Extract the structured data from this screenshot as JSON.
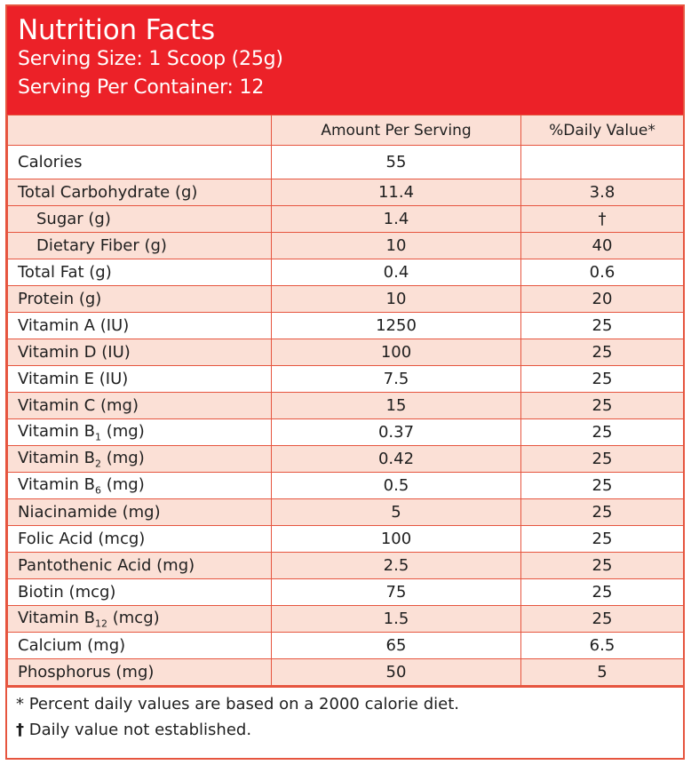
{
  "header": {
    "title": "Nutrition Facts",
    "serving_size": "Serving Size: 1 Scoop (25g)",
    "servings_per_container": "Serving Per Container: 12"
  },
  "columns": {
    "nutrient": "",
    "amount": "Amount Per Serving",
    "daily_value": "%Daily Value*"
  },
  "rows": [
    {
      "name": "Calories",
      "amount": "55",
      "dv": ""
    },
    {
      "name": "Total Carbohydrate (g)",
      "amount": "11.4",
      "dv": "3.8"
    },
    {
      "name": "Sugar (g)",
      "amount": "1.4",
      "dv": "†"
    },
    {
      "name": "Dietary Fiber (g)",
      "amount": "10",
      "dv": "40"
    },
    {
      "name": "Total Fat (g)",
      "amount": "0.4",
      "dv": "0.6"
    },
    {
      "name": "Protein (g)",
      "amount": "10",
      "dv": "20"
    },
    {
      "name": "Vitamin A (IU)",
      "amount": "1250",
      "dv": "25"
    },
    {
      "name": "Vitamin D (IU)",
      "amount": "100",
      "dv": "25"
    },
    {
      "name": "Vitamin E (IU)",
      "amount": "7.5",
      "dv": "25"
    },
    {
      "name": "Vitamin C (mg)",
      "amount": "15",
      "dv": "25"
    },
    {
      "name_prefix": "Vitamin B",
      "name_sub": "1",
      "name_suffix": " (mg)",
      "amount": "0.37",
      "dv": "25"
    },
    {
      "name_prefix": "Vitamin B",
      "name_sub": "2",
      "name_suffix": " (mg)",
      "amount": "0.42",
      "dv": "25"
    },
    {
      "name_prefix": "Vitamin B",
      "name_sub": "6",
      "name_suffix": " (mg)",
      "amount": "0.5",
      "dv": "25"
    },
    {
      "name": "Niacinamide (mg)",
      "amount": "5",
      "dv": "25"
    },
    {
      "name": "Folic Acid (mcg)",
      "amount": "100",
      "dv": "25"
    },
    {
      "name": "Pantothenic Acid (mg)",
      "amount": "2.5",
      "dv": "25"
    },
    {
      "name": "Biotin (mcg)",
      "amount": "75",
      "dv": "25"
    },
    {
      "name_prefix": "Vitamin B",
      "name_sub": "12",
      "name_suffix": " (mcg)",
      "amount": "1.5",
      "dv": "25"
    },
    {
      "name": "Calcium (mg)",
      "amount": "65",
      "dv": "6.5"
    },
    {
      "name": "Phosphorus (mg)",
      "amount": "50",
      "dv": "5"
    }
  ],
  "footer": {
    "note_percent": "* Percent daily values are based on a 2000 calorie diet.",
    "dagger_symbol": "†",
    "note_dagger": " Daily value not established."
  },
  "colors": {
    "header_red": "#ec2128",
    "border": "#e6553f",
    "row_tint": "#fbe0d6"
  }
}
